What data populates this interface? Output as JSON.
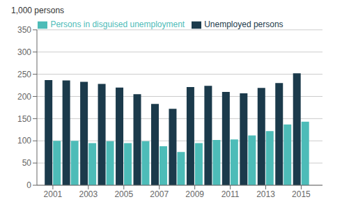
{
  "chart_data": {
    "type": "bar",
    "ylabel": "1,000 persons",
    "x": [
      2001,
      2002,
      2003,
      2004,
      2005,
      2006,
      2007,
      2008,
      2009,
      2010,
      2011,
      2012,
      2013,
      2014,
      2015
    ],
    "xlim": [
      2000.1,
      2016.2
    ],
    "xticks": [
      2001,
      2003,
      2005,
      2007,
      2009,
      2011,
      2013,
      2015
    ],
    "ylim": [
      0,
      350
    ],
    "yticks": [
      0,
      50,
      100,
      150,
      200,
      250,
      300,
      350
    ],
    "grid": true,
    "legend": "top",
    "series": [
      {
        "name": "Unemployed persons",
        "color": "#1b3a4b",
        "values": [
          237,
          236,
          233,
          228,
          220,
          205,
          183,
          172,
          221,
          224,
          210,
          207,
          219,
          230,
          252
        ]
      },
      {
        "name": "Persons in disguised unemployment",
        "color": "#4dbcb8",
        "values": [
          100,
          100,
          95,
          99,
          95,
          99,
          88,
          75,
          95,
          102,
          103,
          112,
          122,
          137,
          143
        ]
      }
    ]
  }
}
